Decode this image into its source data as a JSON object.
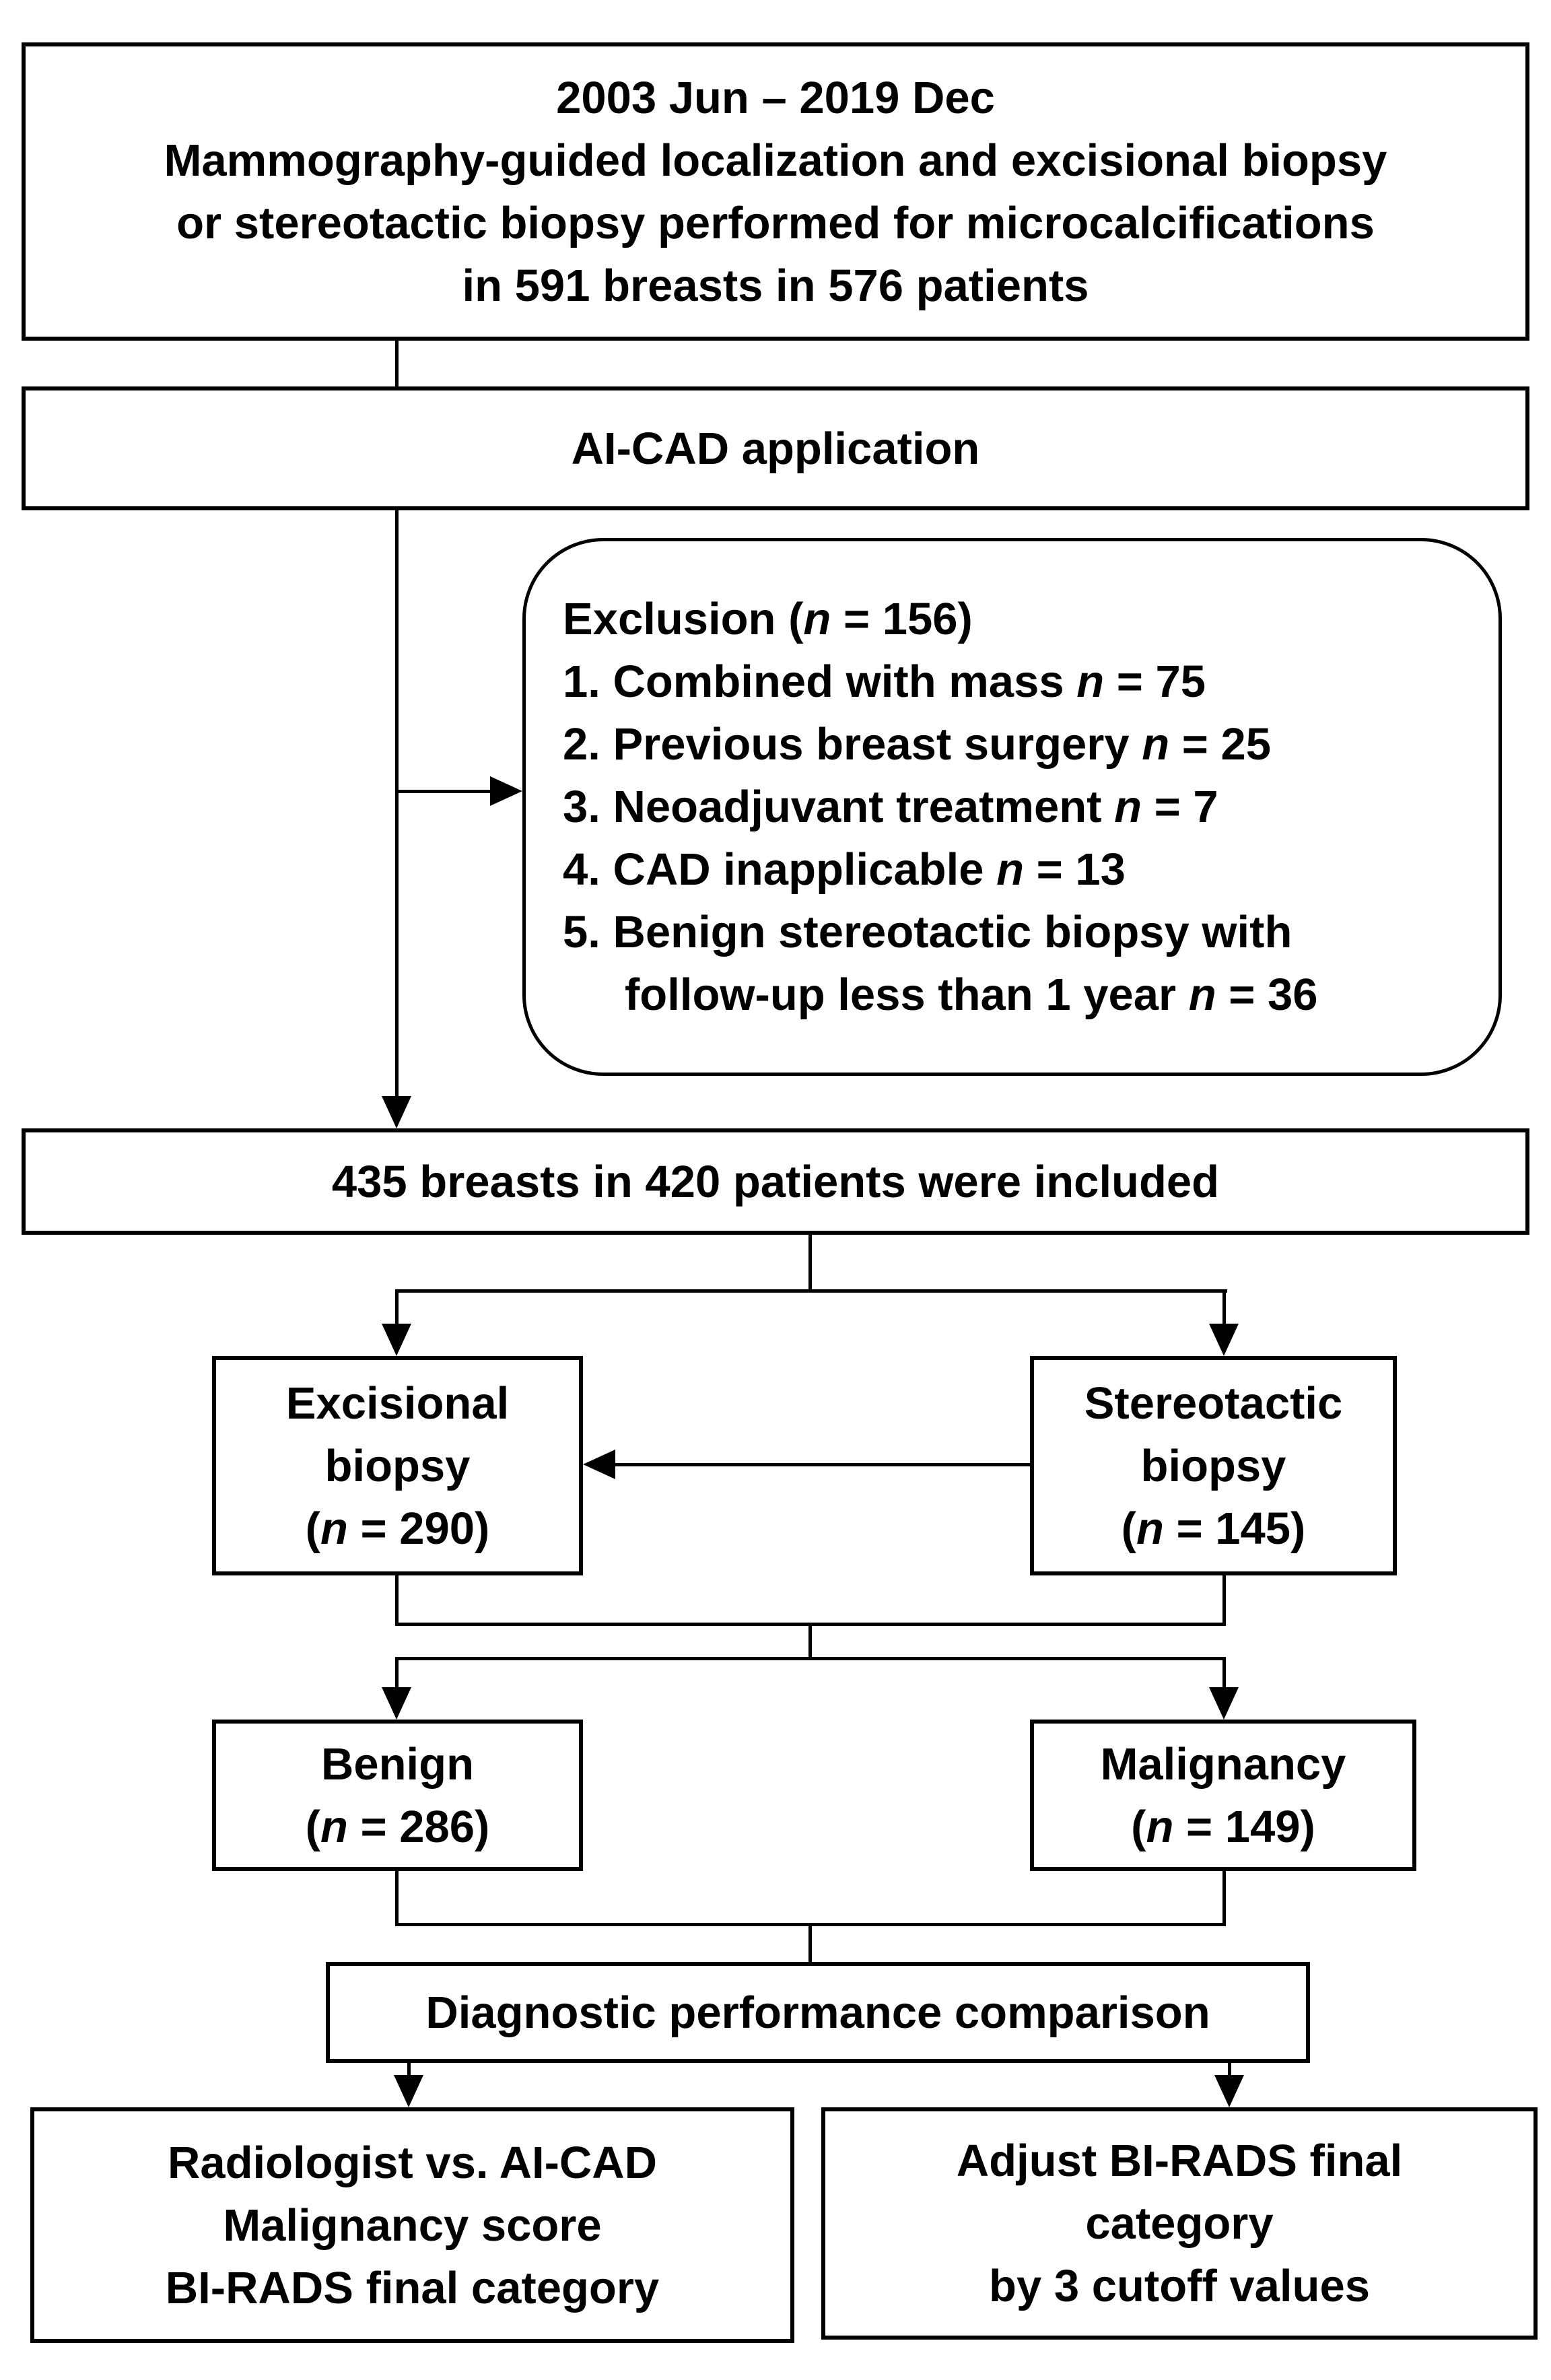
{
  "flowchart": {
    "colors": {
      "line": "#000000",
      "background": "#ffffff",
      "text": "#000000"
    },
    "period_box": {
      "lines": [
        "2003 Jun – 2019 Dec",
        "Mammography-guided localization and excisional biopsy",
        "or stereotactic biopsy performed for microcalcifications",
        "in 591 breasts in 576 patients"
      ]
    },
    "aicad_box": {
      "label": "AI-CAD application"
    },
    "exclusion_box": {
      "lines": [
        "Exclusion (n = 156)",
        "1. Combined with mass n = 75",
        "2. Previous breast surgery n = 25",
        "3. Neoadjuvant treatment n = 7",
        "4. CAD inapplicable n = 13",
        "5. Benign stereotactic biopsy with",
        "follow-up less than 1 year n = 36"
      ]
    },
    "included_box": {
      "label": "435 breasts in 420 patients were included"
    },
    "excisional_box": {
      "lines": [
        "Excisional",
        "biopsy",
        "(n = 290)"
      ]
    },
    "stereotactic_box": {
      "lines": [
        "Stereotactic",
        "biopsy",
        "(n = 145)"
      ]
    },
    "benign_box": {
      "lines": [
        "Benign",
        "(n = 286)"
      ]
    },
    "malignancy_box": {
      "lines": [
        "Malignancy",
        "(n = 149)"
      ]
    },
    "comparison_box": {
      "label": "Diagnostic performance comparison"
    },
    "radiologist_box": {
      "lines": [
        "Radiologist vs. AI-CAD",
        "Malignancy score",
        "BI-RADS final category"
      ]
    },
    "adjust_box": {
      "lines": [
        "Adjust BI-RADS final",
        "category",
        "by 3 cutoff values"
      ]
    }
  }
}
